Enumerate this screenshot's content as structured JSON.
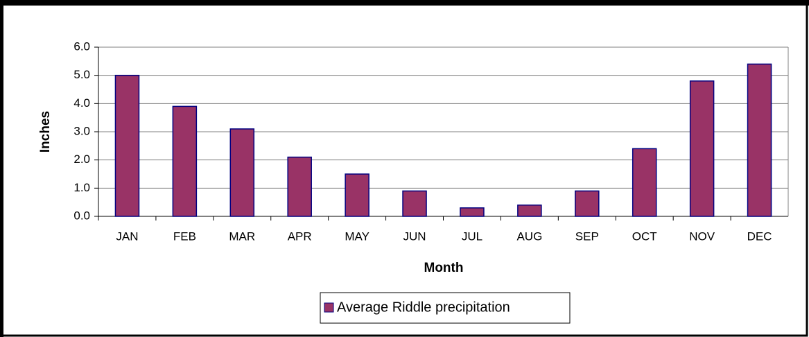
{
  "chart_data": {
    "type": "bar",
    "categories": [
      "JAN",
      "FEB",
      "MAR",
      "APR",
      "MAY",
      "JUN",
      "JUL",
      "AUG",
      "SEP",
      "OCT",
      "NOV",
      "DEC"
    ],
    "series": [
      {
        "name": "Average Riddle precipitation",
        "color": "#993366",
        "values": [
          5.0,
          3.9,
          3.1,
          2.1,
          1.5,
          0.9,
          0.3,
          0.4,
          0.9,
          2.4,
          4.8,
          5.4
        ]
      }
    ],
    "ylim": [
      0,
      6
    ],
    "yticks": [
      {
        "value": 0,
        "label": "0.0"
      },
      {
        "value": 1,
        "label": "1.0"
      },
      {
        "value": 2,
        "label": "2.0"
      },
      {
        "value": 3,
        "label": "3.0"
      },
      {
        "value": 4,
        "label": "4.0"
      },
      {
        "value": 5,
        "label": "5.0"
      },
      {
        "value": 6,
        "label": "6.0"
      }
    ],
    "x_label": "Month",
    "y_label": "Inches",
    "grid": true,
    "legend": "bottom"
  }
}
